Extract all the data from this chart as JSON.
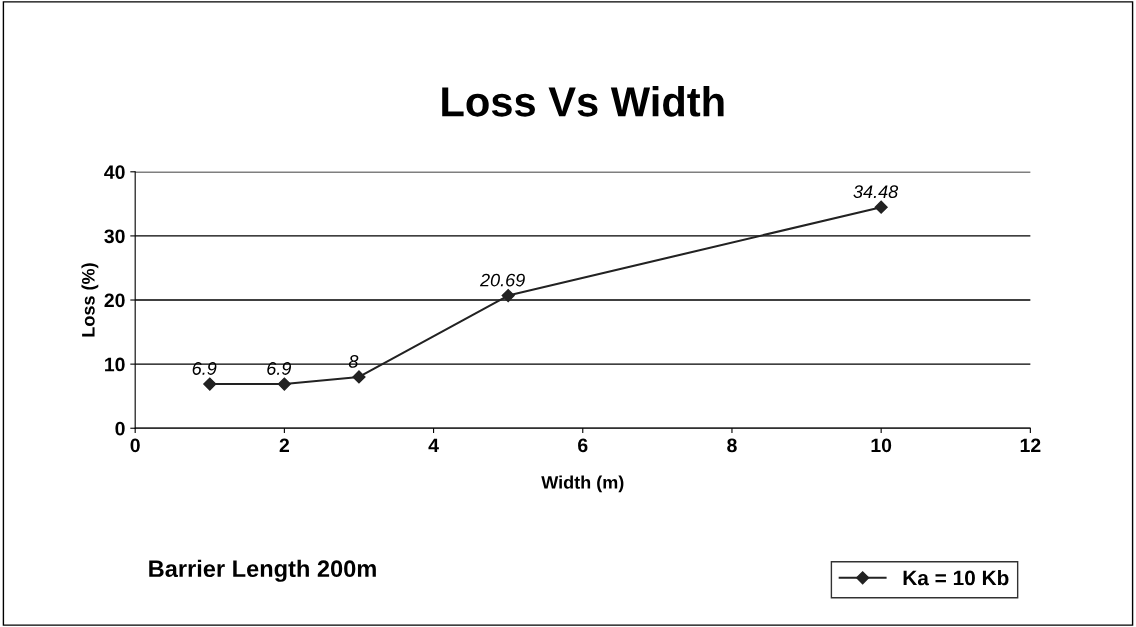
{
  "chart_data": {
    "type": "line",
    "title": "Loss Vs Width",
    "xlabel": "Width (m)",
    "ylabel": "Loss (%)",
    "x": [
      1,
      2,
      3,
      5,
      10
    ],
    "series": [
      {
        "name": "Ka = 10 Kb",
        "color": "#222222",
        "values": [
          6.9,
          6.9,
          8,
          20.69,
          34.48
        ]
      }
    ],
    "xlim": [
      0,
      12
    ],
    "xticks": [
      0,
      2,
      4,
      6,
      8,
      10,
      12
    ],
    "ylim": [
      0,
      40
    ],
    "yticks": [
      0,
      10,
      20,
      30,
      40
    ],
    "grid": "y",
    "legend": "bottom right",
    "marker": "diamond",
    "line_style": "solid",
    "data_labels": true,
    "annotations": [
      "Barrier Length 200m"
    ]
  }
}
